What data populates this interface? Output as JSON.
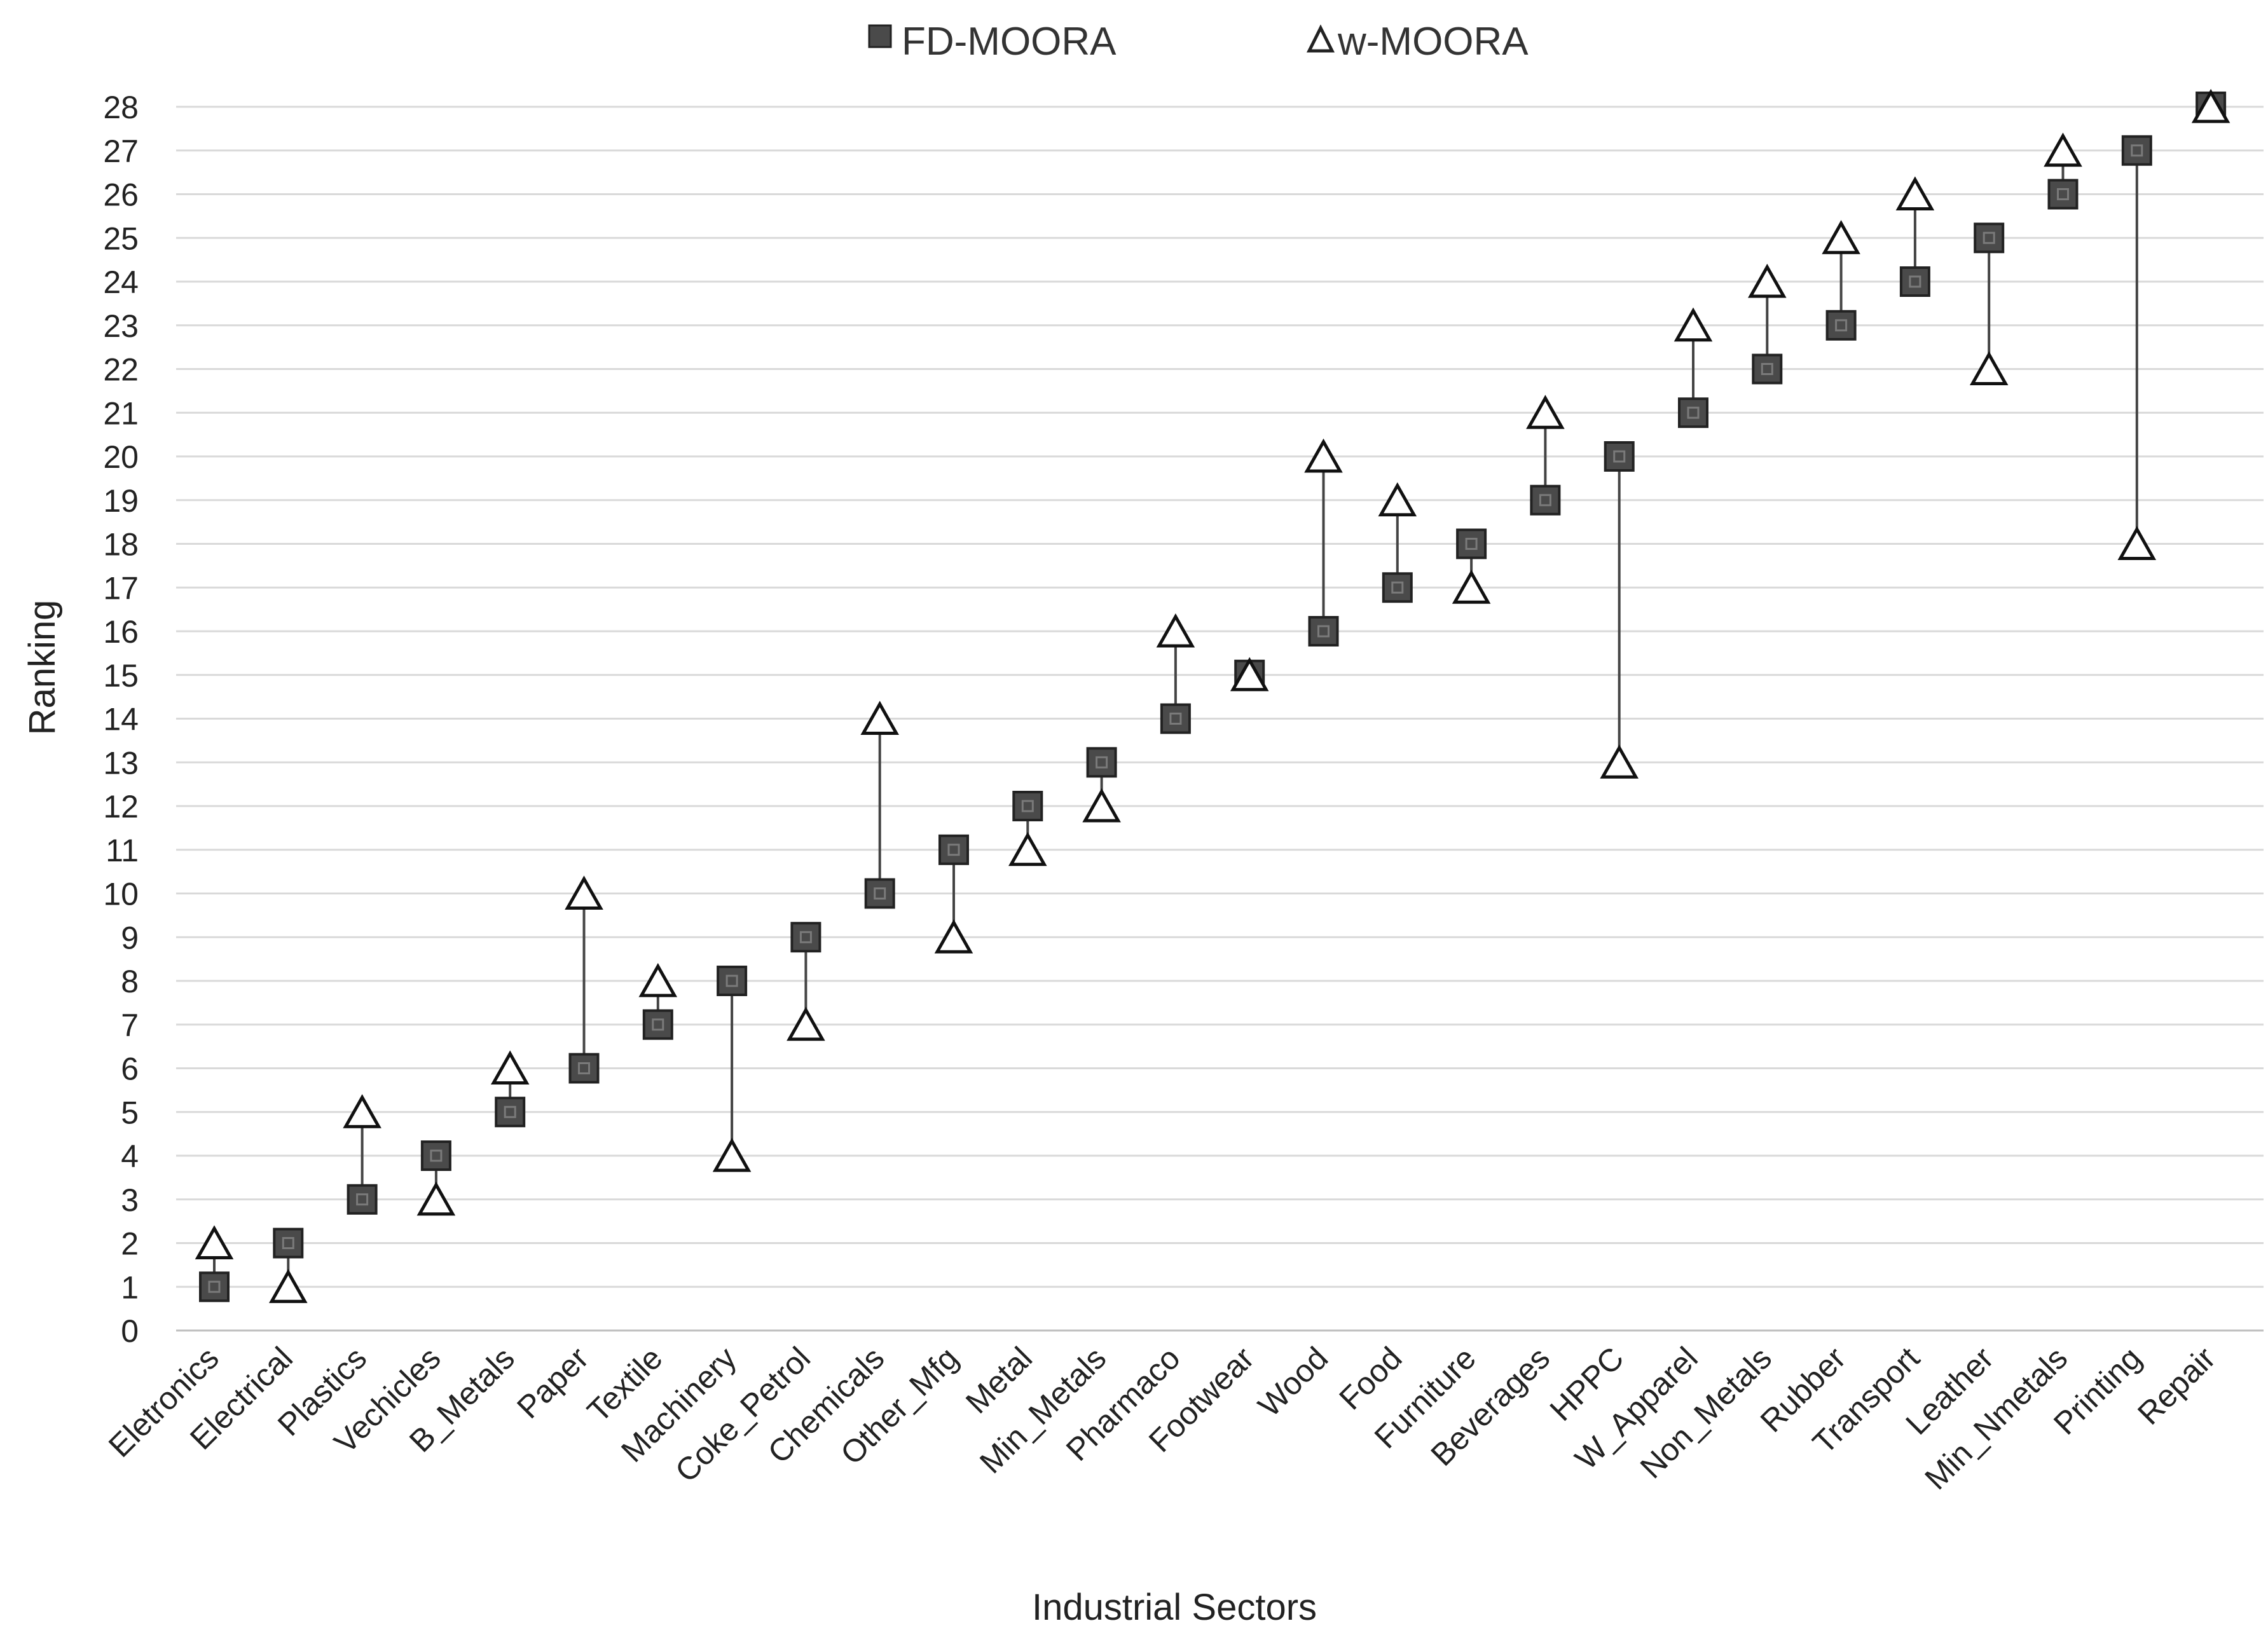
{
  "chart_data": {
    "type": "scatter",
    "title": "",
    "xlabel": "Industrial Sectors",
    "ylabel": "Ranking",
    "ylim": [
      0,
      28
    ],
    "yticks": [
      0,
      1,
      2,
      3,
      4,
      5,
      6,
      7,
      8,
      9,
      10,
      11,
      12,
      13,
      14,
      15,
      16,
      17,
      18,
      19,
      20,
      21,
      22,
      23,
      24,
      25,
      26,
      27,
      28
    ],
    "grid": true,
    "legend_position": "top-center",
    "categories": [
      "Eletronics",
      "Electrical",
      "Plastics",
      "Vechicles",
      "B_Metals",
      "Paper",
      "Textile",
      "Machinery",
      "Coke_Petrol",
      "Chemicals",
      "Other_Mfg",
      "Metal",
      "Min_Metals",
      "Pharmaco",
      "Footwear",
      "Wood",
      "Food",
      "Furniture",
      "Beverages",
      "HPPC",
      "W_Apparel",
      "Non_Metals",
      "Rubber",
      "Transport",
      "Leather",
      "Min_Nmetals",
      "Printing",
      "Repair"
    ],
    "series": [
      {
        "name": "FD-MOORA",
        "marker": "square",
        "color": "#4a4a4a",
        "values": [
          1,
          2,
          3,
          4,
          5,
          6,
          7,
          8,
          9,
          10,
          11,
          12,
          13,
          14,
          15,
          16,
          17,
          18,
          19,
          20,
          21,
          22,
          23,
          24,
          25,
          26,
          27,
          28
        ]
      },
      {
        "name": "w-MOORA",
        "marker": "triangle",
        "color": "#ffffff",
        "values": [
          2,
          1,
          5,
          3,
          6,
          10,
          8,
          4,
          7,
          14,
          9,
          11,
          12,
          16,
          15,
          20,
          19,
          17,
          21,
          13,
          23,
          24,
          25,
          26,
          22,
          27,
          18,
          28
        ]
      }
    ]
  }
}
